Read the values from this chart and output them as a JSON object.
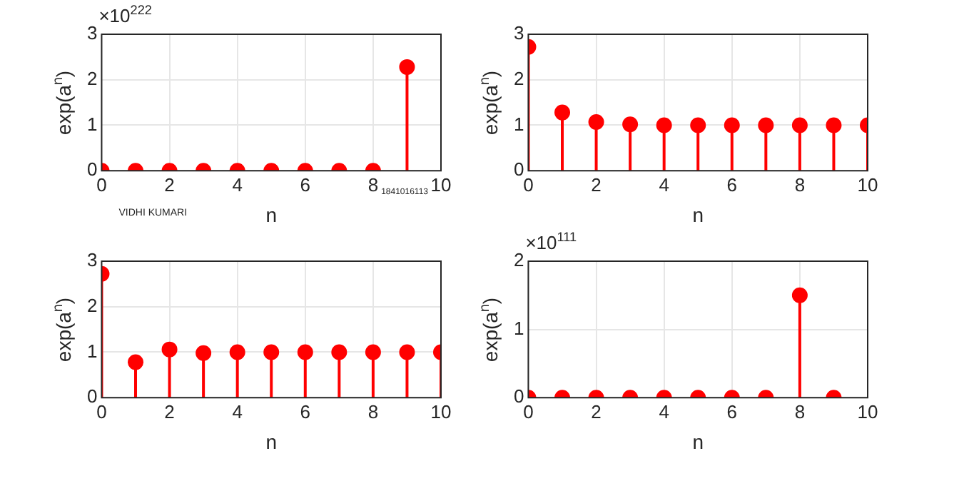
{
  "chart_data": [
    {
      "type": "lollipop",
      "xlabel": "n",
      "ylabel": "exp(a$^{n}$)",
      "x": [
        0,
        1,
        2,
        3,
        4,
        5,
        6,
        7,
        8,
        9
      ],
      "series": [
        {
          "color": "#ff0000",
          "values": [
            0,
            0,
            0,
            0,
            0,
            0,
            0,
            0,
            0,
            2.28
          ]
        }
      ],
      "xlim": [
        0,
        10
      ],
      "xticks": [
        0,
        2,
        4,
        6,
        8,
        10
      ],
      "ylim": [
        0,
        3
      ],
      "yticks": [
        0,
        1,
        2,
        3
      ],
      "grid": true,
      "marker": "circle",
      "legend": false,
      "annotations": [
        "×10$^{222}$",
        "VIDHI KUMARI",
        "1841016113"
      ]
    },
    {
      "type": "lollipop",
      "xlabel": "n",
      "ylabel": "exp(a$^{n}$)",
      "x": [
        0,
        1,
        2,
        3,
        4,
        5,
        6,
        7,
        8,
        9,
        10
      ],
      "series": [
        {
          "color": "#ff0000",
          "values": [
            2.72,
            1.28,
            1.07,
            1.02,
            1.0,
            1.0,
            1.0,
            1.0,
            1.0,
            1.0,
            1.0
          ]
        }
      ],
      "xlim": [
        0,
        10
      ],
      "xticks": [
        0,
        2,
        4,
        6,
        8,
        10
      ],
      "ylim": [
        0,
        3
      ],
      "yticks": [
        0,
        1,
        2,
        3
      ],
      "grid": true,
      "marker": "circle",
      "legend": false
    },
    {
      "type": "lollipop",
      "xlabel": "n",
      "ylabel": "exp(a$^{n}$)",
      "x": [
        0,
        1,
        2,
        3,
        4,
        5,
        6,
        7,
        8,
        9,
        10
      ],
      "series": [
        {
          "color": "#ff0000",
          "values": [
            2.72,
            0.78,
            1.06,
            0.98,
            1.0,
            1.0,
            1.0,
            1.0,
            1.0,
            1.0,
            1.0
          ]
        }
      ],
      "xlim": [
        0,
        10
      ],
      "xticks": [
        0,
        2,
        4,
        6,
        8,
        10
      ],
      "ylim": [
        0,
        3
      ],
      "yticks": [
        0,
        1,
        2,
        3
      ],
      "grid": true,
      "marker": "circle",
      "legend": false
    },
    {
      "type": "lollipop",
      "xlabel": "n",
      "ylabel": "exp(a$^{n}$)",
      "x": [
        0,
        1,
        2,
        3,
        4,
        5,
        6,
        7,
        8,
        9
      ],
      "series": [
        {
          "color": "#ff0000",
          "values": [
            0,
            0,
            0,
            0,
            0,
            0,
            0,
            0,
            1.5,
            0
          ]
        }
      ],
      "xlim": [
        0,
        10
      ],
      "xticks": [
        0,
        2,
        4,
        6,
        8,
        10
      ],
      "ylim": [
        0,
        2
      ],
      "yticks": [
        0,
        1,
        2
      ],
      "grid": true,
      "marker": "circle",
      "legend": false,
      "annotations": [
        "×10$^{111}$"
      ]
    }
  ]
}
